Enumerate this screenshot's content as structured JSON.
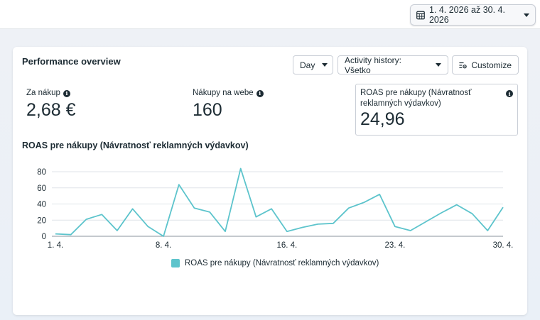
{
  "topbar": {
    "date_range": "1. 4. 2026 až 30. 4. 2026",
    "calendar_icon": "calendar-icon"
  },
  "card": {
    "title": "Performance overview",
    "controls": {
      "day": "Day",
      "activity": "Activity history: Všetko",
      "customize": "Customize"
    },
    "metrics": [
      {
        "label": "Za nákup",
        "value": "2,68 €"
      },
      {
        "label": "Nákupy na webe",
        "value": "160"
      },
      {
        "label": "ROAS pre nákupy (Návratnosť reklamných výdavkov)",
        "value": "24,96"
      }
    ]
  },
  "chart_data": {
    "type": "line",
    "title": "ROAS pre nákupy (Návratnosť reklamných výdavkov)",
    "xlabel": "",
    "ylabel": "",
    "x_tick_labels": [
      "1. 4.",
      "8. 4.",
      "16. 4.",
      "23. 4.",
      "30. 4."
    ],
    "x_tick_days": [
      1,
      8,
      16,
      23,
      30
    ],
    "y_ticks": [
      0,
      20,
      40,
      60,
      80
    ],
    "ylim": [
      0,
      90
    ],
    "grid": true,
    "legend_position": "bottom",
    "series": [
      {
        "name": "ROAS pre nákupy (Návratnosť reklamných výdavkov)",
        "color": "#5dc4cc",
        "x": [
          1,
          2,
          3,
          4,
          5,
          6,
          7,
          8,
          9,
          10,
          11,
          12,
          13,
          14,
          15,
          16,
          17,
          18,
          19,
          20,
          21,
          22,
          23,
          24,
          25,
          26,
          27,
          28,
          29,
          30
        ],
        "values": [
          3,
          2,
          21,
          27,
          7,
          34,
          12,
          0,
          64,
          35,
          30,
          6,
          84,
          24,
          34,
          6,
          11,
          15,
          16,
          35,
          42,
          52,
          12,
          7,
          18,
          29,
          39,
          28,
          7,
          36
        ]
      }
    ]
  }
}
